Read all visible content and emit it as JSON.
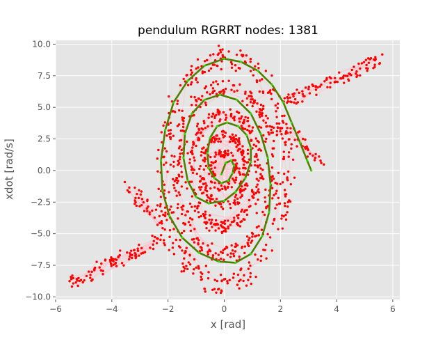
{
  "chart_data": {
    "type": "scatter",
    "title": "pendulum RGRRT nodes: 1381",
    "xlabel": "x [rad]",
    "ylabel": "xdot [rad/s]",
    "xlim": [
      -6.0,
      6.25
    ],
    "ylim": [
      -10.2,
      10.3
    ],
    "xticks": [
      -6,
      -4,
      -2,
      0,
      2,
      4,
      6
    ],
    "xtick_labels": [
      "−6",
      "−4",
      "−2",
      "0",
      "2",
      "4",
      "6"
    ],
    "yticks": [
      -10.0,
      -7.5,
      -5.0,
      -2.5,
      0.0,
      2.5,
      5.0,
      7.5,
      10.0
    ],
    "ytick_labels": [
      "−10.0",
      "−7.5",
      "−5.0",
      "−2.5",
      "0.0",
      "2.5",
      "5.0",
      "7.5",
      "10.0"
    ],
    "grid": true,
    "style": "ggplot",
    "colors": {
      "background": "#e5e5e5",
      "grid": "#ffffff",
      "tree_edges": "#ffc0cb",
      "nodes": "#ff0000",
      "solution_path": "#4f7f00",
      "solution_nodes": "#33dd00"
    },
    "series": [
      {
        "name": "",
        "role": "tree-nodes",
        "marker": "dot",
        "approx_count": 1381,
        "rings": [
          {
            "x_amp": 2.2,
            "y_amp": 8.9,
            "phase_shift": 0.45,
            "spread": 0.55,
            "count": 330
          },
          {
            "x_amp": 1.7,
            "y_amp": 6.6,
            "phase_shift": 0.35,
            "spread": 0.5,
            "count": 290
          },
          {
            "x_amp": 1.2,
            "y_amp": 4.5,
            "phase_shift": 0.3,
            "spread": 0.45,
            "count": 240
          },
          {
            "x_amp": 0.8,
            "y_amp": 2.8,
            "phase_shift": 0.2,
            "spread": 0.4,
            "count": 170
          },
          {
            "x_amp": 0.45,
            "y_amp": 1.4,
            "phase_shift": 0.1,
            "spread": 0.3,
            "count": 90
          }
        ],
        "branches": [
          {
            "from": [
              2.1,
              5.4
            ],
            "to": [
              5.8,
              9.0
            ],
            "count": 95
          },
          {
            "from": [
              -2.2,
              -5.4
            ],
            "to": [
              -5.5,
              -8.9
            ],
            "count": 95
          },
          {
            "from": [
              2.0,
              4.0
            ],
            "to": [
              3.6,
              0.2
            ],
            "count": 35
          },
          {
            "from": [
              -2.3,
              -4.2
            ],
            "to": [
              -3.5,
              -1.0
            ],
            "count": 35
          }
        ]
      },
      {
        "name": "",
        "role": "solution-path",
        "x": [
          3.1,
          2.95,
          2.7,
          2.4,
          2.1,
          1.7,
          1.2,
          0.6,
          0.0,
          -0.7,
          -1.3,
          -1.8,
          -2.1,
          -2.25,
          -2.2,
          -1.95,
          -1.5,
          -0.9,
          -0.2,
          0.4,
          0.95,
          1.35,
          1.6,
          1.65,
          1.55,
          1.3,
          0.95,
          0.45,
          -0.15,
          -0.7,
          -1.15,
          -1.4,
          -1.45,
          -1.3,
          -1.0,
          -0.55,
          0.0,
          0.4,
          0.75,
          0.95,
          0.95,
          0.8,
          0.5,
          0.1,
          -0.25,
          -0.5,
          -0.6,
          -0.55,
          -0.35,
          -0.1,
          0.15,
          0.3,
          0.35,
          0.25,
          0.05,
          -0.1
        ],
        "y": [
          0.0,
          0.8,
          2.2,
          3.8,
          5.4,
          6.8,
          7.9,
          8.6,
          8.85,
          8.3,
          7.1,
          5.4,
          3.2,
          0.8,
          -1.6,
          -3.6,
          -5.3,
          -6.5,
          -7.2,
          -7.3,
          -6.6,
          -5.2,
          -3.3,
          -1.1,
          1.0,
          2.9,
          4.5,
          5.6,
          6.0,
          5.6,
          4.5,
          2.9,
          1.0,
          -0.8,
          -2.1,
          -2.6,
          -2.4,
          -1.7,
          -0.6,
          0.7,
          1.8,
          2.8,
          3.5,
          3.8,
          3.5,
          2.6,
          1.4,
          0.2,
          -0.6,
          -1.0,
          -0.8,
          -0.2,
          0.4,
          0.8,
          0.6,
          -0.3
        ]
      }
    ]
  }
}
